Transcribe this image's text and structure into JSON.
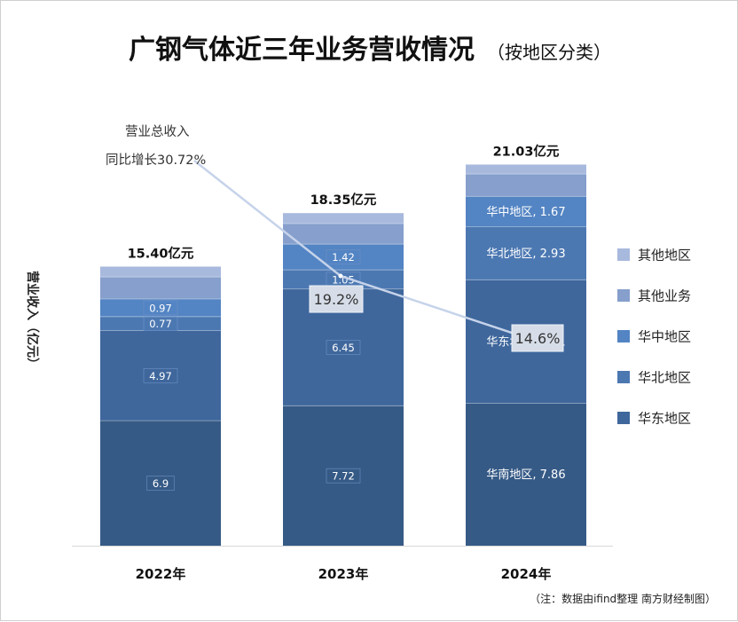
{
  "title": {
    "main": "广钢气体近三年业务营收情况",
    "sub": "（按地区分类）"
  },
  "source_note": "（注：数据由ifind整理 南方财经制图）",
  "chart_data": {
    "type": "bar",
    "stacked": true,
    "ylabel": "营业收入（亿元）",
    "ylim": [
      0,
      23.5
    ],
    "grid": false,
    "legend_position": "right",
    "categories": [
      "2022年",
      "2023年",
      "2024年"
    ],
    "totals": [
      "15.40亿元",
      "18.35亿元",
      "21.03亿元"
    ],
    "series": [
      {
        "key": "s1",
        "color": "#365a86",
        "values": [
          6.9,
          7.72,
          7.86
        ]
      },
      {
        "key": "s2",
        "color": "#3f679c",
        "values": [
          4.97,
          6.45,
          6.81
        ]
      },
      {
        "key": "s3",
        "color": "#4c78b2",
        "values": [
          0.77,
          1.05,
          2.93
        ]
      },
      {
        "key": "s4",
        "color": "#5384c3",
        "values": [
          0.97,
          1.42,
          1.67
        ]
      },
      {
        "key": "s5",
        "color": "#869fcc",
        "values": [
          1.22,
          1.13,
          1.24
        ]
      },
      {
        "key": "s6",
        "color": "#a8b9de",
        "values": [
          0.57,
          0.58,
          0.52
        ]
      }
    ],
    "segment_labels": [
      [
        "6.9",
        "4.97",
        "0.77",
        "0.97",
        "",
        ""
      ],
      [
        "7.72",
        "6.45",
        "1.05",
        "1.42",
        "",
        ""
      ],
      [
        "华南地区, 7.86",
        "华东地区, 6.81",
        "华北地区, 2.93",
        "华中地区, 1.67",
        "",
        ""
      ]
    ],
    "legend": [
      {
        "label": "其他地区",
        "color": "#a8b9de"
      },
      {
        "label": "其他业务",
        "color": "#869fcc"
      },
      {
        "label": "华中地区",
        "color": "#5384c3"
      },
      {
        "label": "华北地区",
        "color": "#4c78b2"
      },
      {
        "label": "华东地区",
        "color": "#3f679c"
      }
    ],
    "growth_line": {
      "color": "#c6d3ea",
      "annotation": [
        "营业总收入",
        "同比增长30.72%"
      ],
      "rates": [
        "19.2%",
        "14.6%"
      ]
    }
  }
}
